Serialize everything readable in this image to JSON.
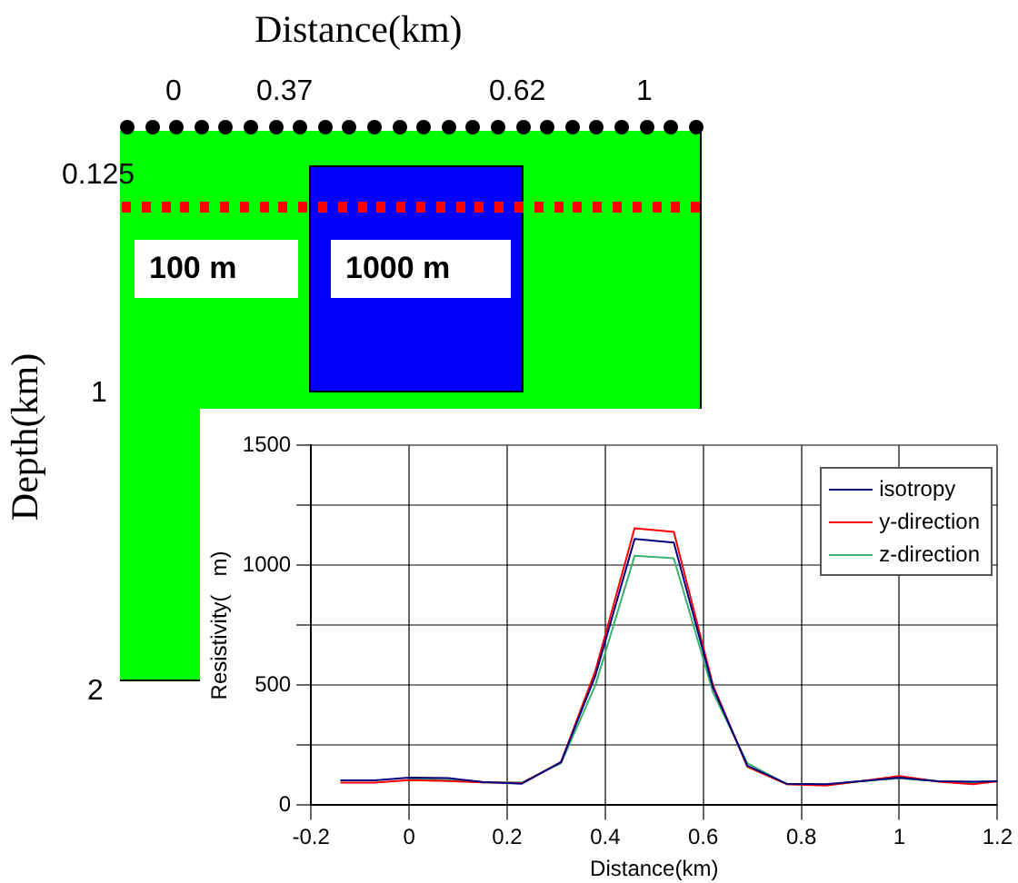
{
  "chart_data": [
    {
      "type": "other",
      "title": "Distance(km)",
      "ylabel": "Depth(km)",
      "annotations": [
        "0",
        "0.37",
        "0.62",
        "1",
        "0.125",
        "1",
        "2",
        "100   m",
        "1000   m"
      ]
    },
    {
      "type": "line",
      "xlabel": "Distance(km)",
      "ylabel": "Resistivity(   m)",
      "x": [
        -0.14,
        -0.07,
        0,
        0.08,
        0.15,
        0.23,
        0.31,
        0.38,
        0.46,
        0.54,
        0.62,
        0.69,
        0.77,
        0.85,
        0.92,
        1.0,
        1.08,
        1.15,
        1.2
      ],
      "series": [
        {
          "name": "isotropy",
          "color": "#000080",
          "values": [
            104,
            104,
            115,
            113,
            97,
            90,
            180,
            540,
            1110,
            1095,
            490,
            165,
            90,
            88,
            100,
            115,
            100,
            98,
            100
          ]
        },
        {
          "name": "y-direction",
          "color": "#ff0000",
          "values": [
            94,
            94,
            105,
            101,
            95,
            92,
            180,
            560,
            1155,
            1140,
            500,
            160,
            88,
            82,
            100,
            122,
            98,
            88,
            100
          ]
        },
        {
          "name": "z-direction",
          "color": "#3cb371",
          "values": [
            null,
            null,
            110,
            106,
            95,
            95,
            175,
            500,
            1040,
            1030,
            470,
            175,
            88,
            85,
            100,
            112,
            100,
            95,
            100
          ]
        }
      ],
      "xlim": [
        -0.2,
        1.2
      ],
      "xticks": [
        -0.2,
        0,
        0.2,
        0.4,
        0.6,
        0.8,
        1,
        1.2
      ],
      "ylim": [
        0,
        1500
      ],
      "yticks": [
        0,
        {
          "value": 250,
          "label": null
        },
        500,
        {
          "value": 750,
          "label": null
        },
        1000,
        {
          "value": 1250,
          "label": null
        },
        1500
      ],
      "grid": true,
      "legend": "top right",
      "marker": "none",
      "line_style": "solid"
    }
  ]
}
